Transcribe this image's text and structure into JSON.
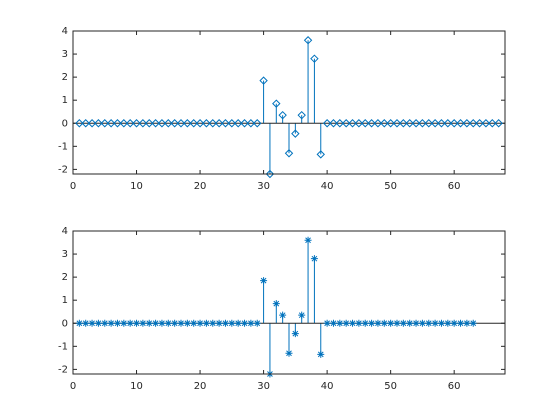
{
  "chart_data": [
    {
      "type": "stem",
      "marker": "diamond",
      "color": "#0072bd",
      "x": [
        1,
        2,
        3,
        4,
        5,
        6,
        7,
        8,
        9,
        10,
        11,
        12,
        13,
        14,
        15,
        16,
        17,
        18,
        19,
        20,
        21,
        22,
        23,
        24,
        25,
        26,
        27,
        28,
        29,
        30,
        31,
        32,
        33,
        34,
        35,
        36,
        37,
        38,
        39,
        40,
        41,
        42,
        43,
        44,
        45,
        46,
        47,
        48,
        49,
        50,
        51,
        52,
        53,
        54,
        55,
        56,
        57,
        58,
        59,
        60,
        61,
        62,
        63,
        64,
        65,
        66,
        67
      ],
      "values": [
        0,
        0,
        0,
        0,
        0,
        0,
        0,
        0,
        0,
        0,
        0,
        0,
        0,
        0,
        0,
        0,
        0,
        0,
        0,
        0,
        0,
        0,
        0,
        0,
        0,
        0,
        0,
        0,
        0,
        1.85,
        -2.2,
        0.85,
        0.35,
        -1.3,
        -0.45,
        0.35,
        3.6,
        2.8,
        -1.35,
        0,
        0,
        0,
        0,
        0,
        0,
        0,
        0,
        0,
        0,
        0,
        0,
        0,
        0,
        0,
        0,
        0,
        0,
        0,
        0,
        0,
        0,
        0,
        0,
        0,
        0,
        0,
        0
      ],
      "xlim": [
        0,
        68
      ],
      "xticks": [
        0,
        10,
        20,
        30,
        40,
        50,
        60
      ],
      "ylim": [
        -2.2,
        4
      ],
      "yticks": [
        -2,
        -1,
        0,
        1,
        2,
        3,
        4
      ]
    },
    {
      "type": "stem",
      "marker": "asterisk",
      "color": "#0072bd",
      "x": [
        1,
        2,
        3,
        4,
        5,
        6,
        7,
        8,
        9,
        10,
        11,
        12,
        13,
        14,
        15,
        16,
        17,
        18,
        19,
        20,
        21,
        22,
        23,
        24,
        25,
        26,
        27,
        28,
        29,
        30,
        31,
        32,
        33,
        34,
        35,
        36,
        37,
        38,
        39,
        40,
        41,
        42,
        43,
        44,
        45,
        46,
        47,
        48,
        49,
        50,
        51,
        52,
        53,
        54,
        55,
        56,
        57,
        58,
        59,
        60,
        61,
        62,
        63
      ],
      "values": [
        0,
        0,
        0,
        0,
        0,
        0,
        0,
        0,
        0,
        0,
        0,
        0,
        0,
        0,
        0,
        0,
        0,
        0,
        0,
        0,
        0,
        0,
        0,
        0,
        0,
        0,
        0,
        0,
        0,
        1.85,
        -2.2,
        0.85,
        0.35,
        -1.3,
        -0.45,
        0.35,
        3.6,
        2.8,
        -1.35,
        0,
        0,
        0,
        0,
        0,
        0,
        0,
        0,
        0,
        0,
        0,
        0,
        0,
        0,
        0,
        0,
        0,
        0,
        0,
        0,
        0,
        0,
        0,
        0
      ],
      "xlim": [
        0,
        68
      ],
      "xticks": [
        0,
        10,
        20,
        30,
        40,
        50,
        60
      ],
      "ylim": [
        -2.2,
        4
      ],
      "yticks": [
        -2,
        -1,
        0,
        1,
        2,
        3,
        4
      ]
    }
  ]
}
